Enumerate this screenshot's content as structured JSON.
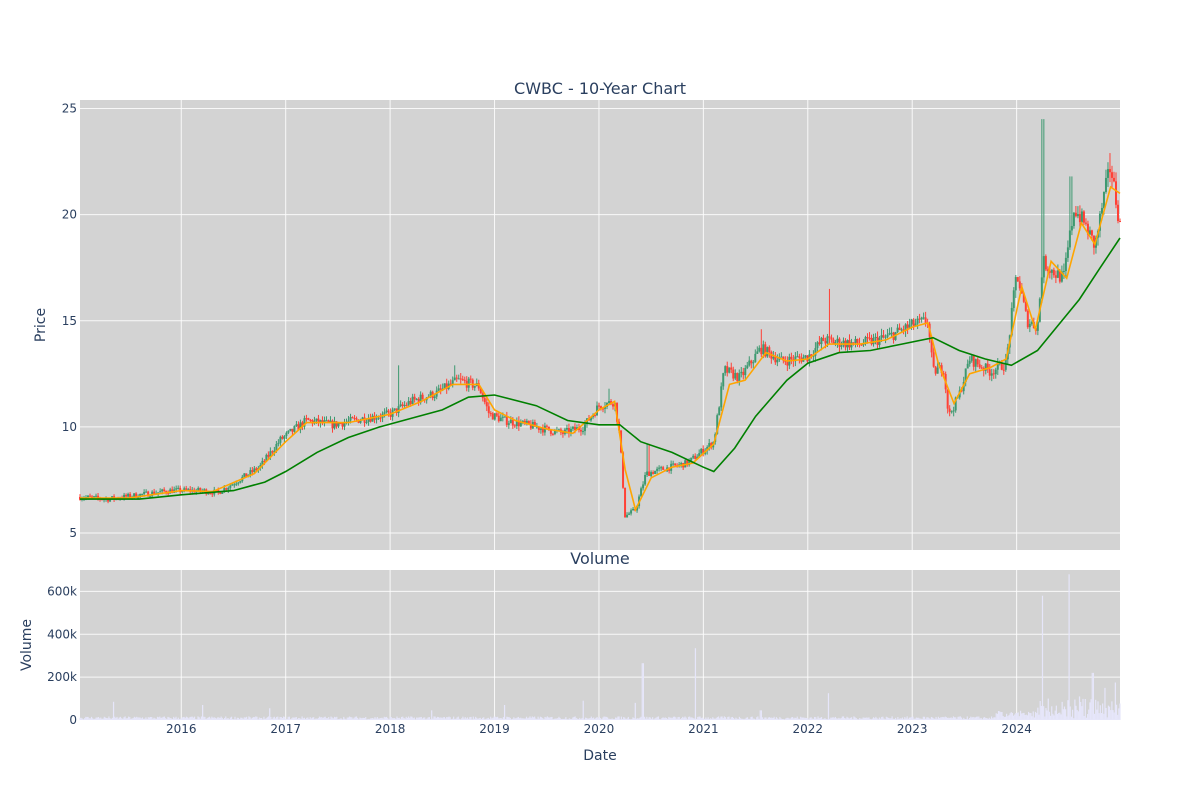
{
  "colors": {
    "plot_bg": "#d3d3d3",
    "increasing": "#3d9970",
    "decreasing": "#ff4136",
    "ma_short": "#ffa500",
    "ma_long": "#008000",
    "volume": "#e6e6fa",
    "text": "#2a3f5f"
  },
  "chart_data": [
    {
      "type": "candlestick",
      "title": "CWBC - 10-Year Chart",
      "ylabel": "Price",
      "xlim": [
        2015.03,
        2024.99
      ],
      "ylim": [
        4.2,
        25.4
      ],
      "x_ticks": [
        2016,
        2017,
        2018,
        2019,
        2020,
        2021,
        2022,
        2023,
        2024
      ],
      "y_ticks": [
        5,
        10,
        15,
        20,
        25
      ],
      "price_anchors": [
        [
          2015.03,
          6.7
        ],
        [
          2015.3,
          6.6
        ],
        [
          2015.6,
          6.8
        ],
        [
          2015.9,
          7.0
        ],
        [
          2016.2,
          7.0
        ],
        [
          2016.35,
          6.9
        ],
        [
          2016.55,
          7.5
        ],
        [
          2016.75,
          8.1
        ],
        [
          2016.95,
          9.4
        ],
        [
          2017.2,
          10.3
        ],
        [
          2017.45,
          10.1
        ],
        [
          2017.75,
          10.4
        ],
        [
          2018.0,
          10.6
        ],
        [
          2018.2,
          11.2
        ],
        [
          2018.45,
          11.6
        ],
        [
          2018.65,
          12.2
        ],
        [
          2018.85,
          11.9
        ],
        [
          2018.95,
          10.6
        ],
        [
          2019.1,
          10.3
        ],
        [
          2019.4,
          10.0
        ],
        [
          2019.65,
          9.7
        ],
        [
          2019.85,
          10.0
        ],
        [
          2020.0,
          11.0
        ],
        [
          2020.15,
          11.2
        ],
        [
          2020.2,
          9.5
        ],
        [
          2020.25,
          5.8
        ],
        [
          2020.35,
          6.1
        ],
        [
          2020.45,
          7.8
        ],
        [
          2020.6,
          8.0
        ],
        [
          2020.85,
          8.3
        ],
        [
          2021.0,
          8.9
        ],
        [
          2021.1,
          9.3
        ],
        [
          2021.2,
          12.7
        ],
        [
          2021.35,
          12.3
        ],
        [
          2021.55,
          13.7
        ],
        [
          2021.75,
          13.1
        ],
        [
          2022.0,
          13.3
        ],
        [
          2022.15,
          14.1
        ],
        [
          2022.25,
          14.0
        ],
        [
          2022.5,
          13.9
        ],
        [
          2022.75,
          14.2
        ],
        [
          2023.0,
          14.8
        ],
        [
          2023.15,
          15.0
        ],
        [
          2023.2,
          12.6
        ],
        [
          2023.3,
          12.8
        ],
        [
          2023.35,
          10.5
        ],
        [
          2023.45,
          11.5
        ],
        [
          2023.55,
          13.2
        ],
        [
          2023.75,
          12.6
        ],
        [
          2023.9,
          13.0
        ],
        [
          2024.0,
          17.3
        ],
        [
          2024.1,
          15.0
        ],
        [
          2024.2,
          14.7
        ],
        [
          2024.25,
          17.8
        ],
        [
          2024.35,
          17.3
        ],
        [
          2024.45,
          17.0
        ],
        [
          2024.55,
          20.3
        ],
        [
          2024.65,
          19.6
        ],
        [
          2024.75,
          18.5
        ],
        [
          2024.85,
          21.2
        ],
        [
          2024.9,
          22.3
        ],
        [
          2024.99,
          19.5
        ]
      ],
      "spikes": [
        [
          2018.08,
          12.9
        ],
        [
          2018.62,
          12.9
        ],
        [
          2020.1,
          11.8
        ],
        [
          2020.47,
          9.2
        ],
        [
          2021.55,
          14.6
        ],
        [
          2022.21,
          16.5
        ],
        [
          2024.25,
          24.5
        ],
        [
          2024.52,
          21.8
        ],
        [
          2024.9,
          22.9
        ]
      ],
      "ma_short": [
        [
          2015.03,
          6.65
        ],
        [
          2015.5,
          6.65
        ],
        [
          2016.0,
          7.0
        ],
        [
          2016.3,
          6.95
        ],
        [
          2016.7,
          7.8
        ],
        [
          2017.0,
          9.3
        ],
        [
          2017.2,
          10.2
        ],
        [
          2017.6,
          10.2
        ],
        [
          2018.0,
          10.6
        ],
        [
          2018.3,
          11.2
        ],
        [
          2018.6,
          12.0
        ],
        [
          2018.85,
          12.0
        ],
        [
          2019.0,
          10.8
        ],
        [
          2019.2,
          10.3
        ],
        [
          2019.5,
          9.9
        ],
        [
          2019.75,
          9.7
        ],
        [
          2020.0,
          10.8
        ],
        [
          2020.15,
          11.2
        ],
        [
          2020.25,
          8.0
        ],
        [
          2020.35,
          6.1
        ],
        [
          2020.5,
          7.6
        ],
        [
          2020.7,
          8.1
        ],
        [
          2020.9,
          8.3
        ],
        [
          2021.1,
          9.2
        ],
        [
          2021.25,
          12.0
        ],
        [
          2021.4,
          12.2
        ],
        [
          2021.6,
          13.5
        ],
        [
          2021.8,
          13.1
        ],
        [
          2022.0,
          13.2
        ],
        [
          2022.2,
          13.9
        ],
        [
          2022.5,
          13.9
        ],
        [
          2022.75,
          14.1
        ],
        [
          2023.0,
          14.7
        ],
        [
          2023.15,
          14.9
        ],
        [
          2023.25,
          13.0
        ],
        [
          2023.4,
          11.1
        ],
        [
          2023.55,
          12.5
        ],
        [
          2023.75,
          12.8
        ],
        [
          2023.9,
          13.2
        ],
        [
          2024.05,
          16.6
        ],
        [
          2024.18,
          14.6
        ],
        [
          2024.33,
          17.8
        ],
        [
          2024.48,
          17.0
        ],
        [
          2024.62,
          19.6
        ],
        [
          2024.75,
          18.6
        ],
        [
          2024.9,
          21.3
        ],
        [
          2024.99,
          21.0
        ]
      ],
      "ma_long": [
        [
          2015.03,
          6.6
        ],
        [
          2015.6,
          6.6
        ],
        [
          2016.0,
          6.8
        ],
        [
          2016.5,
          7.0
        ],
        [
          2016.8,
          7.4
        ],
        [
          2017.0,
          7.9
        ],
        [
          2017.3,
          8.8
        ],
        [
          2017.6,
          9.5
        ],
        [
          2017.9,
          10.0
        ],
        [
          2018.2,
          10.4
        ],
        [
          2018.5,
          10.8
        ],
        [
          2018.75,
          11.4
        ],
        [
          2019.0,
          11.5
        ],
        [
          2019.4,
          11.0
        ],
        [
          2019.7,
          10.3
        ],
        [
          2020.0,
          10.1
        ],
        [
          2020.2,
          10.1
        ],
        [
          2020.4,
          9.3
        ],
        [
          2020.7,
          8.8
        ],
        [
          2021.0,
          8.1
        ],
        [
          2021.1,
          7.9
        ],
        [
          2021.3,
          9.0
        ],
        [
          2021.5,
          10.5
        ],
        [
          2021.8,
          12.2
        ],
        [
          2022.0,
          13.0
        ],
        [
          2022.3,
          13.5
        ],
        [
          2022.6,
          13.6
        ],
        [
          2022.9,
          13.9
        ],
        [
          2023.2,
          14.2
        ],
        [
          2023.45,
          13.6
        ],
        [
          2023.7,
          13.2
        ],
        [
          2023.95,
          12.9
        ],
        [
          2024.2,
          13.6
        ],
        [
          2024.4,
          14.8
        ],
        [
          2024.6,
          16.0
        ],
        [
          2024.8,
          17.5
        ],
        [
          2024.99,
          18.9
        ]
      ]
    },
    {
      "type": "bar",
      "title": "Volume",
      "xlabel": "Date",
      "ylabel": "Volume",
      "xlim": [
        2015.03,
        2024.99
      ],
      "ylim": [
        0,
        700000
      ],
      "x_ticks": [
        2016,
        2017,
        2018,
        2019,
        2020,
        2021,
        2022,
        2023,
        2024
      ],
      "y_ticks": [
        0,
        200000,
        400000,
        600000
      ],
      "y_tick_labels": [
        "0",
        "200k",
        "400k",
        "600k"
      ],
      "volume_spikes": [
        [
          2015.35,
          85000
        ],
        [
          2016.2,
          70000
        ],
        [
          2016.85,
          55000
        ],
        [
          2018.4,
          45000
        ],
        [
          2019.1,
          70000
        ],
        [
          2019.85,
          90000
        ],
        [
          2020.35,
          80000
        ],
        [
          2020.42,
          265000
        ],
        [
          2020.92,
          335000
        ],
        [
          2021.55,
          45000
        ],
        [
          2022.2,
          125000
        ],
        [
          2024.25,
          580000
        ],
        [
          2024.3,
          100000
        ],
        [
          2024.5,
          680000
        ],
        [
          2024.6,
          110000
        ],
        [
          2024.73,
          220000
        ],
        [
          2024.85,
          150000
        ],
        [
          2024.95,
          175000
        ]
      ]
    }
  ]
}
